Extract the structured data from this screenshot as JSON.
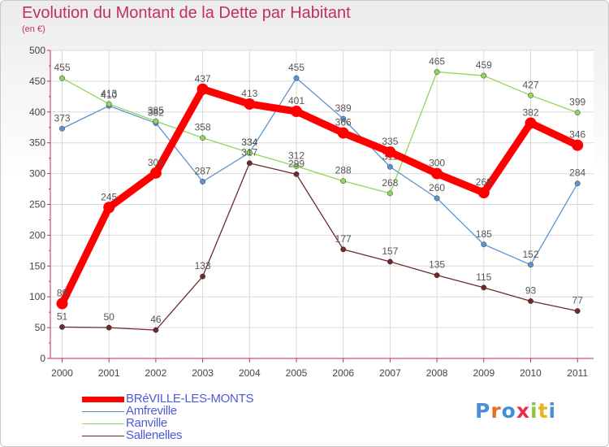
{
  "title": "Evolution du Montant de la Dette par Habitant",
  "subtitle": "(en €)",
  "logo": {
    "text": "Proxiti",
    "letter_colors": [
      "#4b8fd9",
      "#e86d1c",
      "#3f8fd2",
      "#e82d55",
      "#8cc43a",
      "#e8b51c",
      "#4b8fd9"
    ]
  },
  "chart_data": {
    "type": "line",
    "title": "Evolution du Montant de la Dette par Habitant",
    "ylabel": "(en €)",
    "xlabel": "",
    "x": [
      "2000",
      "2001",
      "2002",
      "2003",
      "2004",
      "2005",
      "2006",
      "2007",
      "2008",
      "2009",
      "2010",
      "2011"
    ],
    "ylim": [
      0,
      500
    ],
    "yticks": [
      "0",
      "50",
      "100",
      "150",
      "200",
      "250",
      "300",
      "350",
      "400",
      "450",
      "500"
    ],
    "grid": true,
    "series": [
      {
        "name": "Amfreville",
        "color": "#5b95d0",
        "values": [
          373,
          410,
          382,
          287,
          334,
          455,
          389,
          311,
          260,
          185,
          152,
          284
        ],
        "labels": [
          "373",
          "410",
          "382",
          "287",
          "334",
          "455",
          "389",
          "311",
          "260",
          "185",
          "152",
          "284"
        ]
      },
      {
        "name": "Ranville",
        "color": "#8fd65a",
        "values": [
          455,
          413,
          385,
          358,
          334,
          312,
          288,
          268,
          465,
          459,
          427,
          399
        ],
        "labels": [
          "455",
          "413",
          "385",
          "358",
          "334",
          "312",
          "288",
          "268",
          "465",
          "459",
          "427",
          "399"
        ]
      },
      {
        "name": "Sallenelles",
        "color": "#6e2a2a",
        "values": [
          51,
          50,
          46,
          133,
          317,
          299,
          177,
          157,
          135,
          115,
          93,
          77
        ],
        "labels": [
          "51",
          "50",
          "46",
          "133",
          "317",
          "299",
          "177",
          "157",
          "135",
          "115",
          "93",
          "77"
        ]
      },
      {
        "name": "BRéVILLE-LES-MONTS",
        "color": "#ff0000",
        "values": [
          89,
          245,
          301,
          437,
          413,
          401,
          366,
          335,
          300,
          269,
          382,
          346
        ],
        "labels": [
          "89",
          "245",
          "301",
          "437",
          "413",
          "401",
          "366",
          "335",
          "300",
          "269",
          "382",
          "346"
        ]
      }
    ],
    "legend": [
      "BRéVILLE-LES-MONTS",
      "Amfreville",
      "Ranville",
      "Sallenelles"
    ]
  }
}
